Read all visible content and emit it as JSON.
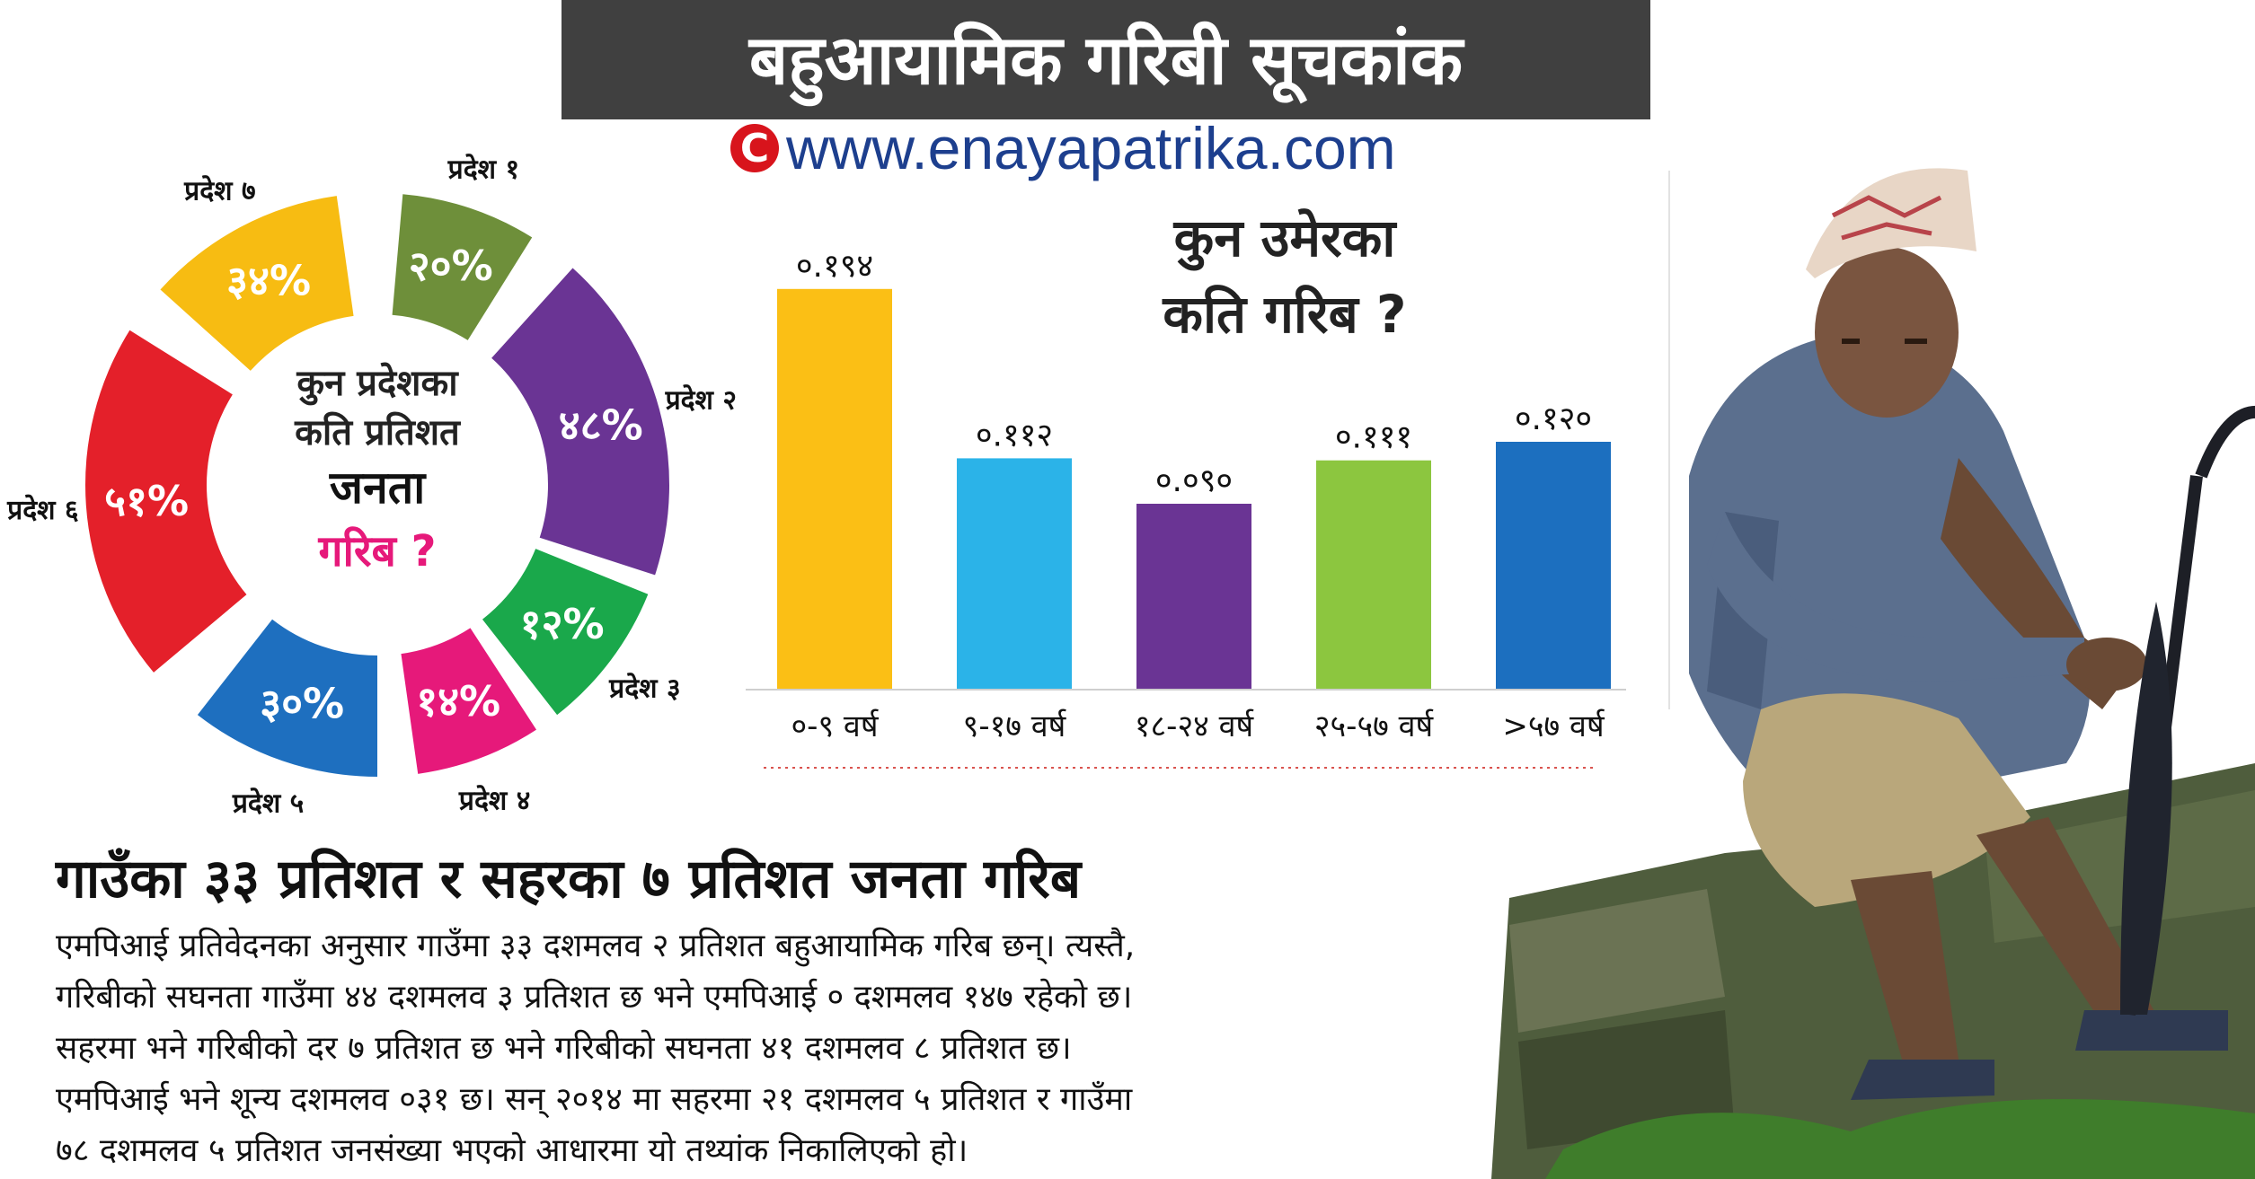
{
  "header": {
    "title": "बहुआयामिक गरिबी सूचकांक",
    "url": "www.enayapatrika.com",
    "copyright_symbol": "C"
  },
  "donut": {
    "question_line1": "कुन प्रदेशका",
    "question_line2": "कति प्रतिशत",
    "question_line3": "जनता",
    "question_line4": "गरिब ?",
    "segments": [
      {
        "label": "प्रदेश १",
        "value_text": "२०%",
        "value": 20,
        "color": "#6e8f3a"
      },
      {
        "label": "प्रदेश २",
        "value_text": "४८%",
        "value": 48,
        "color": "#6a3494"
      },
      {
        "label": "प्रदेश ३",
        "value_text": "१२%",
        "value": 12,
        "color": "#1aa84b"
      },
      {
        "label": "प्रदेश ४",
        "value_text": "१४%",
        "value": 14,
        "color": "#e6197a"
      },
      {
        "label": "प्रदेश ५",
        "value_text": "३०%",
        "value": 30,
        "color": "#1e6fbf"
      },
      {
        "label": "प्रदेश ६",
        "value_text": "५१%",
        "value": 51,
        "color": "#e4202a"
      },
      {
        "label": "प्रदेश ७",
        "value_text": "३४%",
        "value": 34,
        "color": "#f7bc12"
      }
    ]
  },
  "chart_data": {
    "type": "bar",
    "title": "कुन उमेरका कति गरिब ?",
    "title_line1": "कुन उमेरका",
    "title_line2": "कति गरिब ?",
    "categories": [
      "०-९ वर्ष",
      "९-१७ वर्ष",
      "१८-२४ वर्ष",
      "२५-५७ वर्ष",
      ">५७ वर्ष"
    ],
    "values": [
      0.194,
      0.112,
      0.09,
      0.111,
      0.12
    ],
    "value_labels": [
      "०.१९४",
      "०.११२",
      "०.०९०",
      "०.१११",
      "०.१२०"
    ],
    "colors": [
      "#fbbf15",
      "#2bb3e8",
      "#6a3494",
      "#8cc63f",
      "#1c6fbf"
    ],
    "ylim": [
      0,
      0.2
    ],
    "grid": false
  },
  "article": {
    "headline": "गाउँका ३३ प्रतिशत र सहरका ७ प्रतिशत जनता गरिब",
    "lines": [
      "एमपिआई प्रतिवेदनका अनुसार गाउँमा ३३ दशमलव २ प्रतिशत बहुआयामिक गरिब छन्। त्यस्तै,",
      "गरिबीको सघनता गाउँमा ४४ दशमलव ३ प्रतिशत छ भने एमपिआई ० दशमलव १४७ रहेको छ।",
      "सहरमा भने गरिबीको दर ७ प्रतिशत छ भने गरिबीको सघनता ४१ दशमलव ८ प्रतिशत छ।",
      "एमपिआई भने शून्य दशमलव ०३१ छ। सन् २०१४ मा सहरमा २१ दशमलव ५ प्रतिशत र गाउँमा",
      "७८ दशमलव ५ प्रतिशत जनसंख्या भएको आधारमा यो तथ्यांक निकालिएको हो।"
    ]
  }
}
